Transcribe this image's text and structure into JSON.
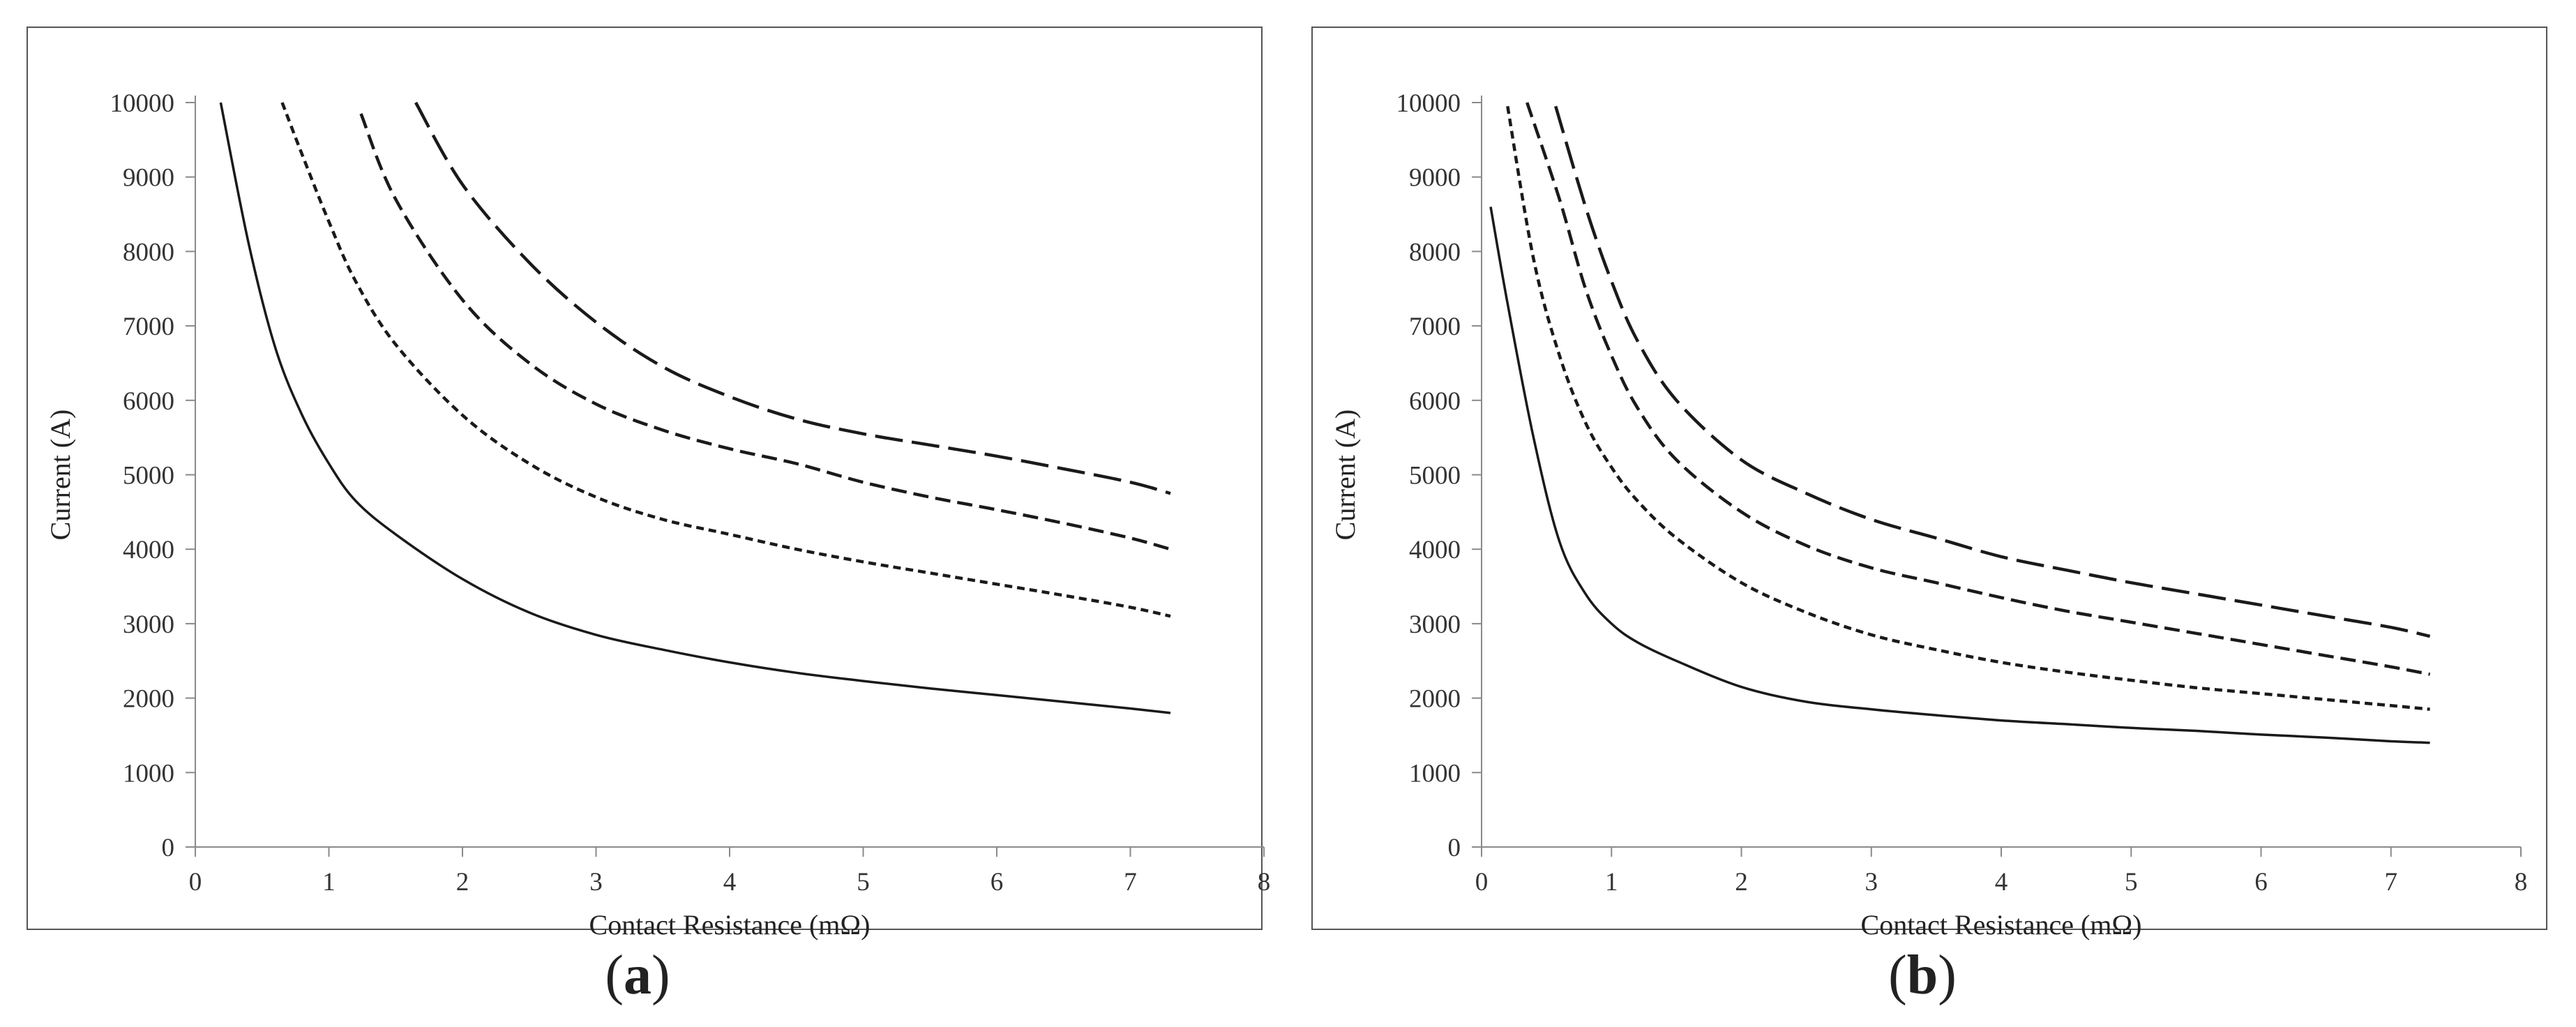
{
  "panels": [
    {
      "open": "(",
      "letter": "a",
      "close": ")"
    },
    {
      "open": "(",
      "letter": "b",
      "close": ")"
    }
  ],
  "chart_data": [
    {
      "type": "line",
      "panel": "a",
      "xlabel": "Contact Resistance (mΩ)",
      "ylabel": "Current (A)",
      "xlim": [
        0,
        8
      ],
      "ylim": [
        0,
        10000
      ],
      "xticks": [
        "0",
        "1",
        "2",
        "3",
        "4",
        "5",
        "6",
        "7",
        "8"
      ],
      "yticks": [
        "0",
        "1000",
        "2000",
        "3000",
        "4000",
        "5000",
        "6000",
        "7000",
        "8000",
        "9000",
        "10000"
      ],
      "grid": false,
      "series": [
        {
          "style": "solid",
          "x": [
            0.19,
            0.4,
            0.6,
            0.8,
            1.0,
            1.2,
            1.5,
            2.0,
            2.5,
            3.0,
            3.5,
            4.0,
            4.5,
            5.0,
            5.5,
            6.0,
            6.5,
            7.0,
            7.3
          ],
          "y": [
            10000,
            8100,
            6700,
            5800,
            5150,
            4650,
            4200,
            3600,
            3150,
            2850,
            2650,
            2480,
            2340,
            2230,
            2130,
            2040,
            1950,
            1860,
            1800
          ]
        },
        {
          "style": "short-dash",
          "x": [
            0.65,
            0.8,
            1.0,
            1.2,
            1.5,
            2.0,
            2.5,
            3.0,
            3.5,
            4.0,
            4.5,
            5.0,
            5.5,
            6.0,
            6.5,
            7.0,
            7.3
          ],
          "y": [
            10000,
            9300,
            8400,
            7600,
            6750,
            5800,
            5150,
            4700,
            4400,
            4200,
            4000,
            3830,
            3680,
            3530,
            3380,
            3220,
            3100
          ]
        },
        {
          "style": "medium-dash",
          "x": [
            1.24,
            1.5,
            2.0,
            2.5,
            3.0,
            3.5,
            4.0,
            4.5,
            5.0,
            5.5,
            6.0,
            6.5,
            7.0,
            7.3
          ],
          "y": [
            9850,
            8700,
            7350,
            6500,
            5950,
            5600,
            5350,
            5150,
            4900,
            4700,
            4530,
            4350,
            4150,
            4000
          ]
        },
        {
          "style": "long-dash",
          "x": [
            1.65,
            2.0,
            2.5,
            3.0,
            3.5,
            4.0,
            4.5,
            5.0,
            5.5,
            6.0,
            6.5,
            7.0,
            7.3
          ],
          "y": [
            10000,
            8900,
            7850,
            7050,
            6450,
            6050,
            5750,
            5550,
            5400,
            5250,
            5080,
            4900,
            4750
          ]
        }
      ]
    },
    {
      "type": "line",
      "panel": "b",
      "xlabel": "Contact Resistance (mΩ)",
      "ylabel": "Current (A)",
      "xlim": [
        0,
        8
      ],
      "ylim": [
        0,
        10000
      ],
      "xticks": [
        "0",
        "1",
        "2",
        "3",
        "4",
        "5",
        "6",
        "7",
        "8"
      ],
      "yticks": [
        "0",
        "1000",
        "2000",
        "3000",
        "4000",
        "5000",
        "6000",
        "7000",
        "8000",
        "9000",
        "10000"
      ],
      "grid": false,
      "series": [
        {
          "style": "solid",
          "x": [
            0.07,
            0.2,
            0.4,
            0.6,
            0.8,
            1.0,
            1.2,
            1.5,
            2.0,
            2.5,
            3.0,
            3.5,
            4.0,
            4.5,
            5.0,
            5.5,
            6.0,
            6.5,
            7.0,
            7.3
          ],
          "y": [
            8600,
            7300,
            5500,
            4100,
            3400,
            3000,
            2750,
            2500,
            2150,
            1950,
            1850,
            1770,
            1700,
            1650,
            1600,
            1560,
            1510,
            1470,
            1420,
            1400
          ]
        },
        {
          "style": "short-dash",
          "x": [
            0.2,
            0.4,
            0.6,
            0.8,
            1.0,
            1.2,
            1.5,
            2.0,
            2.5,
            3.0,
            3.5,
            4.0,
            4.5,
            5.0,
            5.5,
            6.0,
            6.5,
            7.0,
            7.3
          ],
          "y": [
            9950,
            7900,
            6600,
            5700,
            5100,
            4650,
            4150,
            3550,
            3150,
            2850,
            2650,
            2480,
            2350,
            2240,
            2140,
            2060,
            1980,
            1900,
            1850
          ]
        },
        {
          "style": "medium-dash",
          "x": [
            0.35,
            0.6,
            0.8,
            1.0,
            1.2,
            1.5,
            2.0,
            2.5,
            3.0,
            3.5,
            4.0,
            4.5,
            5.0,
            5.5,
            6.0,
            6.5,
            7.0,
            7.3
          ],
          "y": [
            10000,
            8700,
            7500,
            6600,
            5900,
            5200,
            4500,
            4050,
            3750,
            3550,
            3350,
            3170,
            3020,
            2870,
            2720,
            2570,
            2420,
            2320
          ]
        },
        {
          "style": "long-dash",
          "x": [
            0.57,
            0.8,
            1.0,
            1.2,
            1.5,
            2.0,
            2.5,
            3.0,
            3.5,
            4.0,
            4.5,
            5.0,
            5.5,
            6.0,
            6.5,
            7.0,
            7.3
          ],
          "y": [
            9950,
            8600,
            7600,
            6800,
            6000,
            5200,
            4750,
            4400,
            4150,
            3900,
            3720,
            3550,
            3400,
            3250,
            3100,
            2950,
            2830
          ]
        }
      ]
    }
  ]
}
